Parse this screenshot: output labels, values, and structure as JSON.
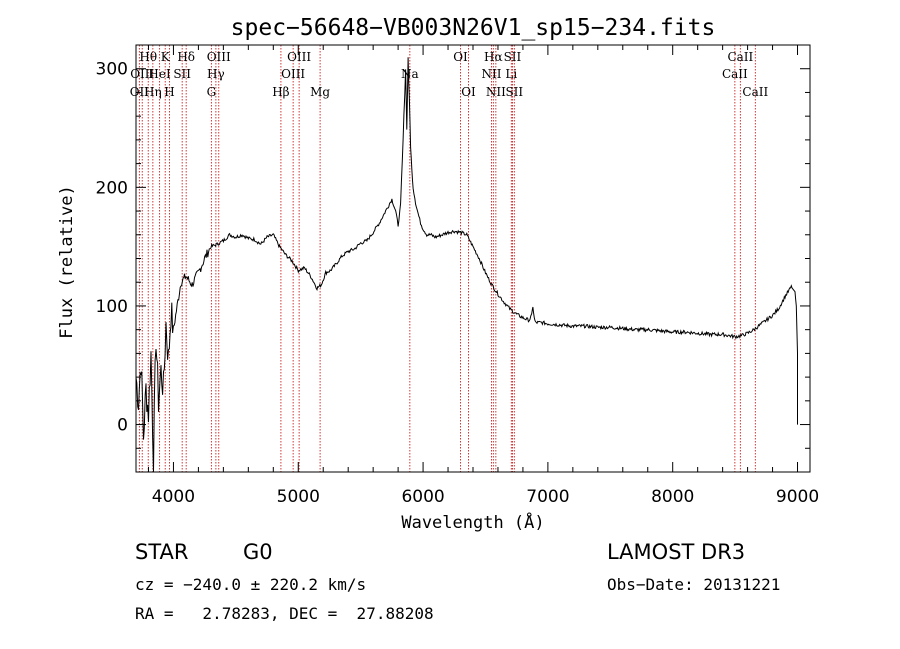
{
  "chart_data": {
    "type": "line",
    "title": "spec−56648−VB003N26V1_sp15−234.fits",
    "xlabel": "Wavelength (Å)",
    "ylabel": "Flux (relative)",
    "xlim": [
      3700,
      9100
    ],
    "ylim": [
      -40,
      320
    ],
    "xticks": [
      4000,
      5000,
      6000,
      7000,
      8000,
      9000
    ],
    "yticks": [
      0,
      100,
      200,
      300
    ],
    "series": [
      {
        "name": "spectrum",
        "x": [
          3700,
          3720,
          3740,
          3760,
          3780,
          3800,
          3820,
          3840,
          3860,
          3880,
          3900,
          3920,
          3940,
          3960,
          3980,
          4000,
          4030,
          4060,
          4100,
          4150,
          4200,
          4250,
          4300,
          4350,
          4400,
          4450,
          4500,
          4550,
          4600,
          4650,
          4700,
          4750,
          4800,
          4850,
          4900,
          4950,
          5000,
          5050,
          5100,
          5150,
          5185,
          5220,
          5260,
          5300,
          5350,
          5400,
          5450,
          5500,
          5550,
          5600,
          5650,
          5700,
          5750,
          5780,
          5800,
          5820,
          5840,
          5860,
          5870,
          5880,
          5885,
          5890,
          5895,
          5900,
          5910,
          5920,
          5940,
          5960,
          5980,
          6000,
          6030,
          6060,
          6100,
          6150,
          6200,
          6250,
          6300,
          6350,
          6400,
          6450,
          6500,
          6550,
          6600,
          6650,
          6700,
          6750,
          6800,
          6850,
          6870,
          6880,
          6890,
          6900,
          6950,
          7000,
          7100,
          7200,
          7300,
          7400,
          7500,
          7600,
          7700,
          7800,
          7900,
          8000,
          8100,
          8200,
          8300,
          8400,
          8450,
          8500,
          8550,
          8600,
          8650,
          8700,
          8750,
          8800,
          8850,
          8900,
          8950,
          8980,
          8990,
          9000,
          9000
        ],
        "y": [
          40,
          20,
          55,
          -10,
          30,
          10,
          60,
          -30,
          75,
          20,
          45,
          30,
          85,
          55,
          95,
          80,
          100,
          120,
          125,
          118,
          128,
          140,
          150,
          152,
          155,
          160,
          158,
          160,
          157,
          156,
          152,
          158,
          160,
          150,
          143,
          138,
          130,
          132,
          125,
          115,
          118,
          128,
          130,
          135,
          142,
          146,
          148,
          153,
          155,
          162,
          170,
          180,
          190,
          180,
          168,
          185,
          240,
          300,
          250,
          310,
          290,
          275,
          255,
          235,
          215,
          200,
          187,
          178,
          170,
          165,
          160,
          160,
          158,
          160,
          162,
          163,
          162,
          160,
          150,
          140,
          128,
          118,
          110,
          103,
          97,
          93,
          90,
          88,
          92,
          100,
          90,
          86,
          86,
          85,
          84,
          83,
          83,
          82,
          82,
          81,
          80,
          80,
          79,
          78,
          78,
          77,
          76,
          76,
          75,
          74,
          75,
          77,
          80,
          84,
          88,
          92,
          98,
          108,
          116,
          112,
          100,
          60,
          0
        ]
      }
    ],
    "spectral_lines": [
      {
        "label": "OII",
        "x": 3727,
        "row": 3
      },
      {
        "label": "Hθ",
        "x": 3798,
        "row": 1
      },
      {
        "label": "OIII",
        "x": 3750,
        "row": 2
      },
      {
        "label": "Hη",
        "x": 3835,
        "row": 3
      },
      {
        "label": "HeI",
        "x": 3889,
        "row": 2
      },
      {
        "label": "K",
        "x": 3934,
        "row": 1
      },
      {
        "label": "H",
        "x": 3968,
        "row": 3
      },
      {
        "label": "SII",
        "x": 4070,
        "row": 2
      },
      {
        "label": "Hδ",
        "x": 4102,
        "row": 1
      },
      {
        "label": "G",
        "x": 4304,
        "row": 3
      },
      {
        "label": "Hγ",
        "x": 4340,
        "row": 2
      },
      {
        "label": "OIII",
        "x": 4363,
        "row": 1
      },
      {
        "label": "Hβ",
        "x": 4861,
        "row": 3
      },
      {
        "label": "OIII",
        "x": 4959,
        "row": 2
      },
      {
        "label": "OIII",
        "x": 5007,
        "row": 1
      },
      {
        "label": "Mg",
        "x": 5175,
        "row": 3
      },
      {
        "label": "Na",
        "x": 5894,
        "row": 2
      },
      {
        "label": "OI",
        "x": 6300,
        "row": 1
      },
      {
        "label": "OI",
        "x": 6364,
        "row": 3
      },
      {
        "label": "NII",
        "x": 6548,
        "row": 2
      },
      {
        "label": "Hα",
        "x": 6563,
        "row": 1
      },
      {
        "label": "NII",
        "x": 6583,
        "row": 3
      },
      {
        "label": "SII",
        "x": 6716,
        "row": 1
      },
      {
        "label": "Li",
        "x": 6707,
        "row": 2
      },
      {
        "label": "SII",
        "x": 6731,
        "row": 3
      },
      {
        "label": "CaII",
        "x": 8498,
        "row": 2
      },
      {
        "label": "CaII",
        "x": 8542,
        "row": 1
      },
      {
        "label": "CaII",
        "x": 8662,
        "row": 3
      }
    ]
  },
  "info": {
    "class": "STAR",
    "subclass": "G0",
    "survey": "LAMOST DR3",
    "cz": "cz = −240.0 ± 220.2 km/s",
    "obs_date": "Obs−Date: 20131221",
    "coords": "RA =   2.78283, DEC =  27.88208"
  },
  "colors": {
    "axis": "#000000",
    "spectrum": "#000000",
    "line_marker": "#cc2222"
  }
}
